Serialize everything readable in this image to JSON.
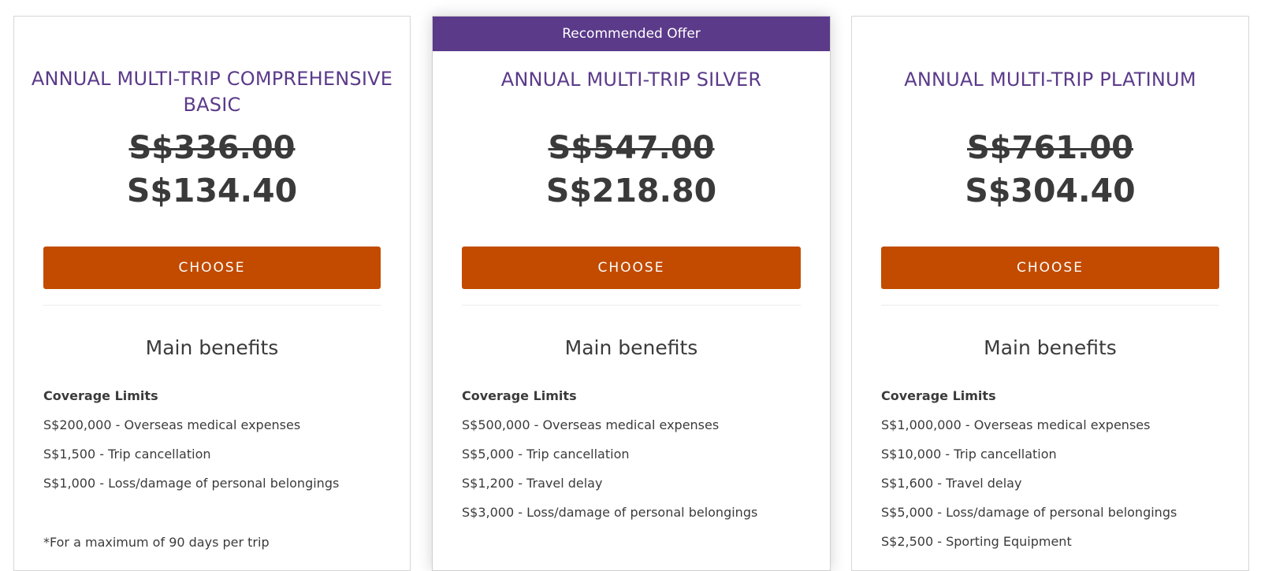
{
  "plans": [
    {
      "title": "ANNUAL MULTI-TRIP COMPREHENSIVE BASIC",
      "original_price": "S$336.00",
      "price": "S$134.40",
      "choose_label": "CHOOSE",
      "benefits_heading": "Main benefits",
      "coverage_label": "Coverage Limits",
      "benefits": [
        "S$200,000 - Overseas medical expenses",
        "S$1,500 - Trip cancellation",
        "S$1,000 - Loss/damage of personal belongings"
      ],
      "footnote": "*For a maximum of 90 days per trip"
    },
    {
      "ribbon": "Recommended Offer",
      "title": "ANNUAL MULTI-TRIP SILVER",
      "original_price": "S$547.00",
      "price": "S$218.80",
      "choose_label": "CHOOSE",
      "benefits_heading": "Main benefits",
      "coverage_label": "Coverage Limits",
      "benefits": [
        "S$500,000 - Overseas medical expenses",
        "S$5,000 - Trip cancellation",
        "S$1,200 - Travel delay",
        "S$3,000 - Loss/damage of personal belongings"
      ]
    },
    {
      "title": "ANNUAL MULTI-TRIP PLATINUM",
      "original_price": "S$761.00",
      "price": "S$304.40",
      "choose_label": "CHOOSE",
      "benefits_heading": "Main benefits",
      "coverage_label": "Coverage Limits",
      "benefits": [
        "S$1,000,000 - Overseas medical expenses",
        "S$10,000 - Trip cancellation",
        "S$1,600 - Travel delay",
        "S$5,000 - Loss/damage of personal belongings",
        "S$2,500 - Sporting Equipment"
      ]
    }
  ],
  "colors": {
    "brand_purple": "#5b3a8a",
    "button_orange": "#c24b00"
  }
}
